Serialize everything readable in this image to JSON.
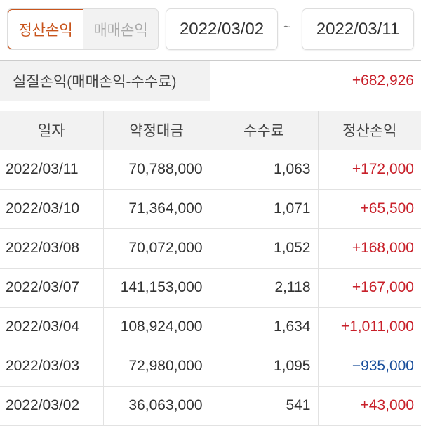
{
  "tabs": [
    {
      "label": "정산손익",
      "active": true
    },
    {
      "label": "매매손익",
      "active": false
    }
  ],
  "date_from": "2022/03/02",
  "separator": "~",
  "date_to": "2022/03/11",
  "summary": {
    "label": "실질손익(매매손익-수수료)",
    "value": "+682,926"
  },
  "table": {
    "headers": [
      "일자",
      "약정대금",
      "수수료",
      "정산손익"
    ],
    "rows": [
      [
        "2022/03/11",
        "70,788,000",
        "1,063",
        "+172,000"
      ],
      [
        "2022/03/10",
        "71,364,000",
        "1,071",
        "+65,500"
      ],
      [
        "2022/03/08",
        "70,072,000",
        "1,052",
        "+168,000"
      ],
      [
        "2022/03/07",
        "141,153,000",
        "2,118",
        "+167,000"
      ],
      [
        "2022/03/04",
        "108,924,000",
        "1,634",
        "+1,011,000"
      ],
      [
        "2022/03/03",
        "72,980,000",
        "1,095",
        "−935,000"
      ],
      [
        "2022/03/02",
        "36,063,000",
        "541",
        "+43,000"
      ]
    ]
  },
  "colors": {
    "accent": "#c8541c",
    "positive": "#c8202a",
    "negative": "#1a4f9c"
  }
}
